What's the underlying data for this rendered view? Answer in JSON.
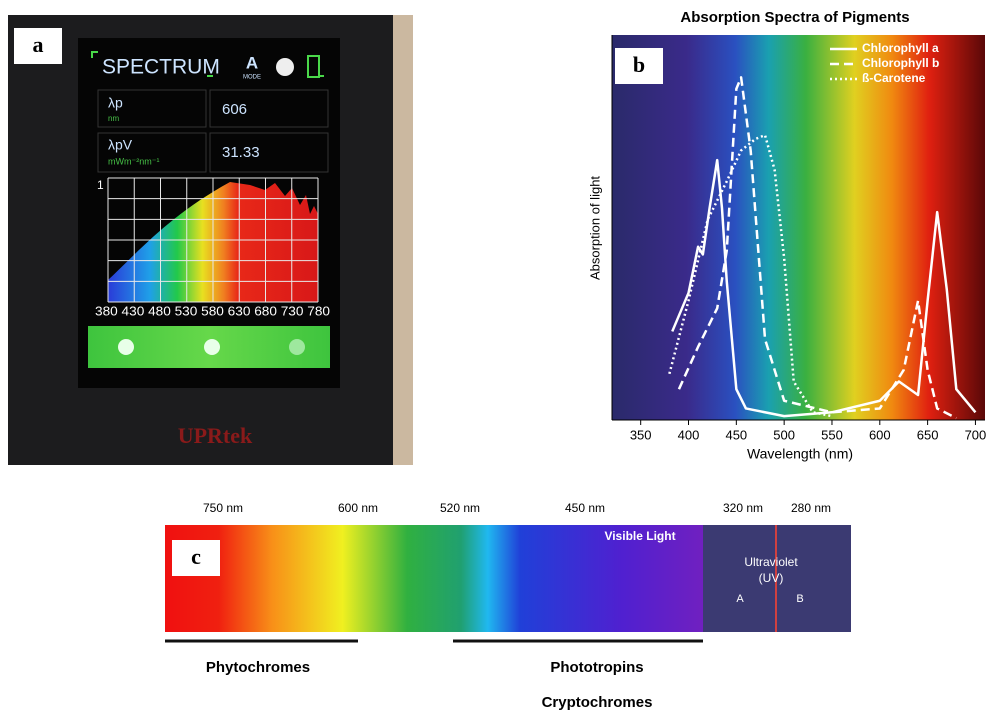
{
  "panel_a": {
    "label": "a",
    "title": "SPECTRUM",
    "mode_icon": "A",
    "mode_caption": "MODE",
    "rows": [
      {
        "symbol": "λp",
        "unit": "nm",
        "value": "606"
      },
      {
        "symbol": "λpV",
        "unit": "mWm⁻²nm⁻¹",
        "value": "31.33"
      }
    ],
    "y_max_label": "1",
    "x_axis_labels": "380 430 480 530 580 630 680 730 780",
    "brand": "UPRtek"
  },
  "chart_data": {
    "type": "line",
    "panel_label": "b",
    "title": "Absorption Spectra of Pigments",
    "x_label": "Wavelength (nm)",
    "y_label": "Absorption of light",
    "xlim": [
      320,
      710
    ],
    "ylim": [
      0,
      1
    ],
    "xticks": [
      350,
      400,
      450,
      500,
      550,
      600,
      650,
      700
    ],
    "legend": "top-right",
    "series": [
      {
        "name": "Chlorophyll a",
        "color": "#ffffff",
        "style": "solid",
        "x": [
          383,
          400,
          410,
          415,
          422,
          430,
          435,
          440,
          450,
          460,
          500,
          550,
          600,
          620,
          640,
          650,
          660,
          670,
          680,
          700
        ],
        "values": [
          0.23,
          0.33,
          0.45,
          0.43,
          0.55,
          0.675,
          0.55,
          0.36,
          0.08,
          0.03,
          0.01,
          0.02,
          0.05,
          0.1,
          0.065,
          0.31,
          0.54,
          0.34,
          0.08,
          0.02
        ]
      },
      {
        "name": "Chlorophyll b",
        "color": "#ffffff",
        "style": "dashed",
        "x": [
          390,
          410,
          430,
          440,
          450,
          455,
          465,
          480,
          500,
          550,
          600,
          625,
          640,
          650,
          660,
          680
        ],
        "values": [
          0.08,
          0.19,
          0.29,
          0.44,
          0.86,
          0.89,
          0.7,
          0.21,
          0.05,
          0.02,
          0.03,
          0.13,
          0.31,
          0.13,
          0.03,
          0.005
        ]
      },
      {
        "name": "ß-Carotene",
        "color": "#ffffff",
        "style": "dotted",
        "x": [
          380,
          400,
          420,
          440,
          455,
          470,
          480,
          490,
          500,
          510,
          530,
          550
        ],
        "values": [
          0.12,
          0.31,
          0.52,
          0.62,
          0.7,
          0.73,
          0.74,
          0.65,
          0.42,
          0.1,
          0.02,
          0.01
        ]
      }
    ]
  },
  "panel_c": {
    "label": "c",
    "wavelengths": [
      "750 nm",
      "600 nm",
      "520 nm",
      "450 nm",
      "320 nm",
      "280 nm"
    ],
    "visible": "Visible Light",
    "uv_line1": "Ultraviolet",
    "uv_line2": "(UV)",
    "uv_a": "A",
    "uv_b": "B",
    "receptors": [
      "Phytochromes",
      "Phototropins",
      "Cryptochromes"
    ]
  }
}
